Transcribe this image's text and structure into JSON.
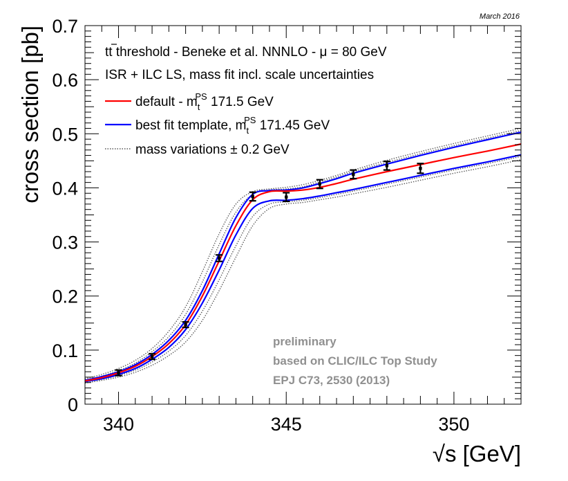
{
  "chart_data": {
    "type": "line",
    "header_note": "March 2016",
    "xlabel_prefix": "√",
    "xlabel_main": "s [GeV]",
    "ylabel": "cross section [pb]",
    "xlim": [
      339,
      352
    ],
    "ylim": [
      0,
      0.7
    ],
    "x_ticks": [
      "340",
      "345",
      "350"
    ],
    "x_tick_values": [
      340,
      345,
      350
    ],
    "y_ticks": [
      "0",
      "0.1",
      "0.2",
      "0.3",
      "0.4",
      "0.5",
      "0.6",
      "0.7"
    ],
    "y_tick_values": [
      0,
      0.1,
      0.2,
      0.3,
      0.4,
      0.5,
      0.6,
      0.7
    ],
    "legend": {
      "title_line1": "tt threshold - Beneke et al. NNNLO - μ = 80 GeV",
      "title_line2": "ISR + ILC LS, mass fit incl. scale uncertainties",
      "entries": [
        {
          "prefix": "default - m",
          "sup": "PS",
          "sub": "t",
          "suffix": " 171.5 GeV",
          "color": "#ff0000",
          "style": "solid"
        },
        {
          "prefix": "best fit template,  m",
          "sup": "PS",
          "sub": "t",
          "suffix": " 171.45 GeV",
          "color": "#0000ff",
          "style": "solid"
        },
        {
          "prefix": "mass variations ± 0.2 GeV",
          "sup": "",
          "sub": "",
          "suffix": "",
          "color": "#555555",
          "style": "dotted"
        }
      ]
    },
    "annotation": {
      "line1": "preliminary",
      "line2": "based on CLIC/ILC Top Study",
      "line3": "EPJ C73, 2530 (2013)",
      "color": "#909090"
    },
    "series": [
      {
        "name": "default",
        "color": "#ff0000",
        "style": "solid",
        "x": [
          339,
          339.5,
          340,
          340.5,
          341,
          341.5,
          342,
          342.5,
          343,
          343.5,
          344,
          344.5,
          345,
          345.5,
          346,
          346.5,
          347,
          348,
          349,
          350,
          351,
          352
        ],
        "y": [
          0.043,
          0.049,
          0.058,
          0.07,
          0.088,
          0.112,
          0.147,
          0.2,
          0.265,
          0.33,
          0.378,
          0.393,
          0.394,
          0.396,
          0.401,
          0.408,
          0.416,
          0.43,
          0.443,
          0.456,
          0.468,
          0.481
        ]
      },
      {
        "name": "best fit upper",
        "color": "#0000ff",
        "style": "solid",
        "x": [
          339,
          339.5,
          340,
          340.5,
          341,
          341.5,
          342,
          342.5,
          343,
          343.5,
          344,
          344.5,
          345,
          345.5,
          346,
          346.5,
          347,
          348,
          349,
          350,
          351,
          352
        ],
        "y": [
          0.044,
          0.051,
          0.06,
          0.073,
          0.092,
          0.118,
          0.155,
          0.21,
          0.278,
          0.345,
          0.388,
          0.395,
          0.396,
          0.4,
          0.408,
          0.417,
          0.427,
          0.444,
          0.46,
          0.475,
          0.489,
          0.503
        ]
      },
      {
        "name": "best fit lower",
        "color": "#0000ff",
        "style": "solid",
        "x": [
          339,
          339.5,
          340,
          340.5,
          341,
          341.5,
          342,
          342.5,
          343,
          343.5,
          344,
          344.5,
          345,
          345.5,
          346,
          346.5,
          347,
          348,
          349,
          350,
          351,
          352
        ],
        "y": [
          0.042,
          0.047,
          0.055,
          0.066,
          0.083,
          0.105,
          0.138,
          0.187,
          0.248,
          0.313,
          0.362,
          0.376,
          0.377,
          0.38,
          0.385,
          0.391,
          0.397,
          0.41,
          0.423,
          0.436,
          0.448,
          0.461
        ]
      },
      {
        "name": "mass variation 1",
        "color": "#555555",
        "style": "dotted",
        "x": [
          339,
          339.5,
          340,
          340.5,
          341,
          341.5,
          342,
          342.5,
          343,
          343.5,
          344,
          344.5,
          345,
          345.5,
          346,
          346.5,
          347,
          348,
          349,
          350,
          351,
          352
        ],
        "y": [
          0.047,
          0.055,
          0.066,
          0.081,
          0.103,
          0.135,
          0.18,
          0.245,
          0.315,
          0.37,
          0.393,
          0.398,
          0.401,
          0.406,
          0.414,
          0.423,
          0.433,
          0.451,
          0.467,
          0.482,
          0.496,
          0.51
        ]
      },
      {
        "name": "mass variation 2",
        "color": "#555555",
        "style": "dotted",
        "x": [
          339,
          339.5,
          340,
          340.5,
          341,
          341.5,
          342,
          342.5,
          343,
          343.5,
          344,
          344.5,
          345,
          345.5,
          346,
          346.5,
          347,
          348,
          349,
          350,
          351,
          352
        ],
        "y": [
          0.045,
          0.052,
          0.062,
          0.076,
          0.097,
          0.125,
          0.166,
          0.226,
          0.295,
          0.355,
          0.388,
          0.396,
          0.398,
          0.402,
          0.411,
          0.42,
          0.43,
          0.447,
          0.463,
          0.478,
          0.492,
          0.506
        ]
      },
      {
        "name": "mass variation 3",
        "color": "#555555",
        "style": "dotted",
        "x": [
          339,
          339.5,
          340,
          340.5,
          341,
          341.5,
          342,
          342.5,
          343,
          343.5,
          344,
          344.5,
          345,
          345.5,
          346,
          346.5,
          347,
          348,
          349,
          350,
          351,
          352
        ],
        "y": [
          0.041,
          0.046,
          0.053,
          0.063,
          0.078,
          0.098,
          0.127,
          0.172,
          0.23,
          0.293,
          0.347,
          0.37,
          0.374,
          0.377,
          0.382,
          0.388,
          0.394,
          0.407,
          0.42,
          0.433,
          0.445,
          0.458
        ]
      },
      {
        "name": "mass variation 4",
        "color": "#555555",
        "style": "dotted",
        "x": [
          339,
          339.5,
          340,
          340.5,
          341,
          341.5,
          342,
          342.5,
          343,
          343.5,
          344,
          344.5,
          345,
          345.5,
          346,
          346.5,
          347,
          348,
          349,
          350,
          351,
          352
        ],
        "y": [
          0.039,
          0.044,
          0.05,
          0.059,
          0.072,
          0.09,
          0.115,
          0.155,
          0.21,
          0.272,
          0.33,
          0.362,
          0.37,
          0.373,
          0.378,
          0.383,
          0.389,
          0.401,
          0.414,
          0.427,
          0.439,
          0.452
        ]
      }
    ],
    "points": {
      "name": "pseudo-data",
      "x": [
        340,
        341,
        342,
        343,
        344,
        345,
        346,
        347,
        348,
        349
      ],
      "y": [
        0.058,
        0.088,
        0.147,
        0.27,
        0.384,
        0.383,
        0.407,
        0.425,
        0.441,
        0.436
      ],
      "err": [
        0.004,
        0.004,
        0.005,
        0.006,
        0.008,
        0.008,
        0.008,
        0.008,
        0.008,
        0.009
      ]
    }
  }
}
